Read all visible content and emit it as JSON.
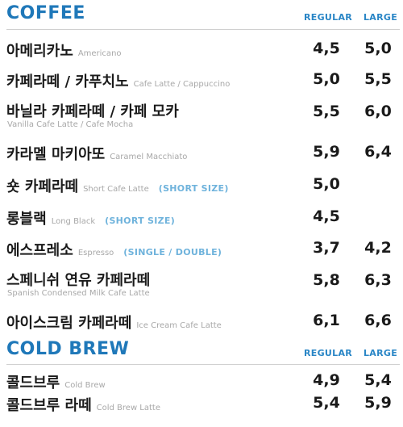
{
  "coffee": {
    "title": "COFFEE",
    "regular_label": "REGULAR",
    "large_label": "LARGE",
    "items": [
      {
        "ko": "아메리카노",
        "en": "Americano",
        "note": "",
        "regular": "4,5",
        "large": "5,0"
      },
      {
        "ko": "카페라떼 / 카푸치노",
        "en": "Cafe Latte / Cappuccino",
        "note": "",
        "regular": "5,0",
        "large": "5,5"
      },
      {
        "ko": "바닐라 카페라떼 / 카페 모카",
        "en": "Vanilla Cafe Latte / Cafe Mocha",
        "note": "",
        "regular": "5,5",
        "large": "6,0"
      },
      {
        "ko": "카라멜 마키아또",
        "en": "Caramel Macchiato",
        "note": "",
        "regular": "5,9",
        "large": "6,4"
      },
      {
        "ko": "숏 카페라떼",
        "en": "Short Cafe Latte",
        "note": "(SHORT SIZE)",
        "regular": "5,0",
        "large": ""
      },
      {
        "ko": "롱블랙",
        "en": "Long Black",
        "note": "(SHORT SIZE)",
        "regular": "4,5",
        "large": ""
      },
      {
        "ko": "에스프레소",
        "en": "Espresso",
        "note": "(SINGLE / DOUBLE)",
        "regular": "3,7",
        "large": "4,2"
      },
      {
        "ko": "스페니쉬 연유 카페라떼",
        "en": "Spanish Condensed Milk Cafe Latte",
        "note": "",
        "regular": "5,8",
        "large": "6,3"
      },
      {
        "ko": "아이스크림 카페라떼",
        "en": "Ice Cream Cafe Latte",
        "note": "",
        "regular": "6,1",
        "large": "6,6"
      }
    ]
  },
  "cold_brew": {
    "title": "COLD BREW",
    "regular_label": "REGULAR",
    "large_label": "LARGE",
    "items": [
      {
        "ko": "콜드브루",
        "en": "Cold Brew",
        "regular": "4,9",
        "large": "5,4"
      },
      {
        "ko": "콜드브루 라떼",
        "en": "Cold Brew Latte",
        "regular": "5,4",
        "large": "5,9"
      }
    ]
  }
}
